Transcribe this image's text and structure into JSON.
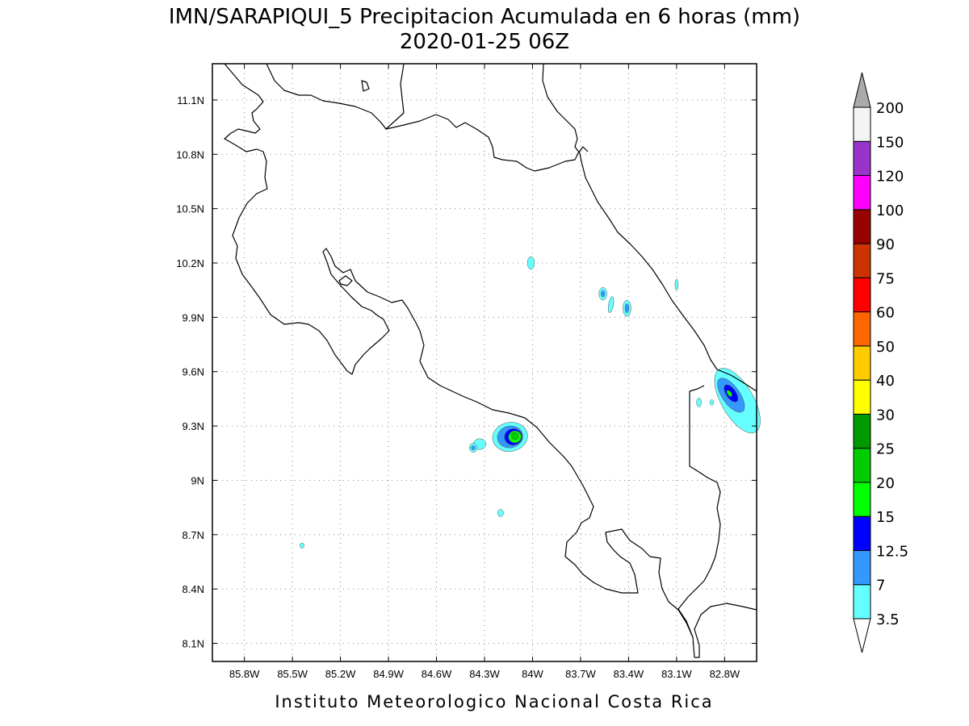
{
  "title": {
    "line1": "IMN/SARAPIQUI_5 Precipitacion Acumulada en 6 horas (mm)",
    "line2": "2020-01-25 06Z"
  },
  "credit": "Instituto Meteorologico Nacional Costa Rica",
  "map": {
    "lon_range": [
      -86.0,
      -82.6
    ],
    "lat_range": [
      8.0,
      11.3
    ],
    "lon_ticks": [
      {
        "value": -85.8,
        "label": "85.8W"
      },
      {
        "value": -85.5,
        "label": "85.5W"
      },
      {
        "value": -85.2,
        "label": "85.2W"
      },
      {
        "value": -84.9,
        "label": "84.9W"
      },
      {
        "value": -84.6,
        "label": "84.6W"
      },
      {
        "value": -84.3,
        "label": "84.3W"
      },
      {
        "value": -84.0,
        "label": "84W"
      },
      {
        "value": -83.7,
        "label": "83.7W"
      },
      {
        "value": -83.4,
        "label": "83.4W"
      },
      {
        "value": -83.1,
        "label": "83.1W"
      },
      {
        "value": -82.8,
        "label": "82.8W"
      }
    ],
    "lat_ticks": [
      {
        "value": 11.1,
        "label": "11.1N"
      },
      {
        "value": 10.8,
        "label": "10.8N"
      },
      {
        "value": 10.5,
        "label": "10.5N"
      },
      {
        "value": 10.2,
        "label": "10.2N"
      },
      {
        "value": 9.9,
        "label": "9.9N"
      },
      {
        "value": 9.6,
        "label": "9.6N"
      },
      {
        "value": 9.3,
        "label": "9.3N"
      },
      {
        "value": 9.0,
        "label": "9N"
      },
      {
        "value": 8.7,
        "label": "8.7N"
      },
      {
        "value": 8.4,
        "label": "8.4N"
      },
      {
        "value": 8.1,
        "label": "8.1N"
      }
    ],
    "grid": true,
    "precip_cells": [
      {
        "lon": -84.14,
        "lat": 9.24,
        "rx": 0.11,
        "ry": 0.08,
        "rot": -10,
        "level": 3.5
      },
      {
        "lon": -84.14,
        "lat": 9.24,
        "rx": 0.08,
        "ry": 0.06,
        "rot": -10,
        "level": 7
      },
      {
        "lon": -84.12,
        "lat": 9.24,
        "rx": 0.055,
        "ry": 0.045,
        "rot": -10,
        "level": 12.5
      },
      {
        "lon": -84.11,
        "lat": 9.24,
        "rx": 0.04,
        "ry": 0.033,
        "rot": -10,
        "level": 15
      },
      {
        "lon": -84.11,
        "lat": 9.245,
        "rx": 0.022,
        "ry": 0.02,
        "rot": -10,
        "level": 20
      },
      {
        "lon": -84.33,
        "lat": 9.2,
        "rx": 0.04,
        "ry": 0.03,
        "rot": 0,
        "level": 3.5
      },
      {
        "lon": -84.37,
        "lat": 9.18,
        "rx": 0.025,
        "ry": 0.025,
        "rot": 0,
        "level": 3.5
      },
      {
        "lon": -84.37,
        "lat": 9.18,
        "rx": 0.012,
        "ry": 0.012,
        "rot": 0,
        "level": 7
      },
      {
        "lon": -84.2,
        "lat": 8.82,
        "rx": 0.018,
        "ry": 0.02,
        "rot": 0,
        "level": 3.5
      },
      {
        "lon": -85.44,
        "lat": 8.64,
        "rx": 0.014,
        "ry": 0.014,
        "rot": 0,
        "level": 3.5
      },
      {
        "lon": -84.01,
        "lat": 10.2,
        "rx": 0.022,
        "ry": 0.035,
        "rot": 0,
        "level": 3.5
      },
      {
        "lon": -83.56,
        "lat": 10.03,
        "rx": 0.025,
        "ry": 0.035,
        "rot": 0,
        "level": 3.5
      },
      {
        "lon": -83.56,
        "lat": 10.03,
        "rx": 0.012,
        "ry": 0.018,
        "rot": 0,
        "level": 7
      },
      {
        "lon": -83.51,
        "lat": 9.97,
        "rx": 0.015,
        "ry": 0.045,
        "rot": 10,
        "level": 3.5
      },
      {
        "lon": -83.41,
        "lat": 9.95,
        "rx": 0.025,
        "ry": 0.045,
        "rot": 0,
        "level": 3.5
      },
      {
        "lon": -83.41,
        "lat": 9.95,
        "rx": 0.012,
        "ry": 0.025,
        "rot": 0,
        "level": 7
      },
      {
        "lon": -83.1,
        "lat": 10.08,
        "rx": 0.01,
        "ry": 0.03,
        "rot": 0,
        "level": 3.5
      },
      {
        "lon": -82.72,
        "lat": 9.44,
        "rx": 0.1,
        "ry": 0.2,
        "rot": -30,
        "level": 3.5
      },
      {
        "lon": -82.76,
        "lat": 9.47,
        "rx": 0.055,
        "ry": 0.11,
        "rot": -35,
        "level": 7
      },
      {
        "lon": -82.76,
        "lat": 9.48,
        "rx": 0.03,
        "ry": 0.055,
        "rot": -35,
        "level": 12.5
      },
      {
        "lon": -82.77,
        "lat": 9.48,
        "rx": 0.012,
        "ry": 0.02,
        "rot": -35,
        "level": 15
      },
      {
        "lon": -82.96,
        "lat": 9.43,
        "rx": 0.015,
        "ry": 0.025,
        "rot": 0,
        "level": 3.5
      },
      {
        "lon": -82.88,
        "lat": 9.43,
        "rx": 0.012,
        "ry": 0.015,
        "rot": 0,
        "level": 3.5
      }
    ]
  },
  "legend": {
    "levels": [
      {
        "label": "3.5",
        "color": "#66ffff"
      },
      {
        "label": "7",
        "color": "#3399ff"
      },
      {
        "label": "12.5",
        "color": "#0000ff"
      },
      {
        "label": "15",
        "color": "#00ff00"
      },
      {
        "label": "20",
        "color": "#00cc00"
      },
      {
        "label": "25",
        "color": "#009900"
      },
      {
        "label": "30",
        "color": "#ffff00"
      },
      {
        "label": "40",
        "color": "#ffcc00"
      },
      {
        "label": "50",
        "color": "#ff6600"
      },
      {
        "label": "60",
        "color": "#ff0000"
      },
      {
        "label": "75",
        "color": "#cc3300"
      },
      {
        "label": "90",
        "color": "#990000"
      },
      {
        "label": "100",
        "color": "#ff00ff"
      },
      {
        "label": "120",
        "color": "#9933cc"
      },
      {
        "label": "150",
        "color": "#f4f4f4"
      },
      {
        "label": "200",
        "color": "#aaaaaa"
      }
    ],
    "under_color": "#ffffff",
    "over_color": "#aaaaaa"
  }
}
